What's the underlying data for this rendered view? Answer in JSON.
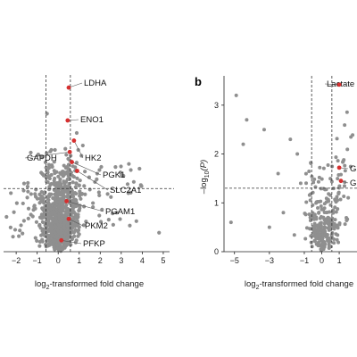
{
  "colors": {
    "point": "#8f8f8f",
    "highlight": "#d62f2f",
    "axis": "#222222",
    "threshold": "#333333"
  },
  "chart_data": [
    {
      "panel": "",
      "type": "scatter",
      "xlabel_prefix": "log",
      "xlabel_sub": "2",
      "xlabel_suffix": "-transformed fold change",
      "ylabel": "",
      "xlim": [
        -2.6,
        5.3
      ],
      "ylim": [
        0,
        14
      ],
      "xticks": [
        -2,
        -1,
        0,
        1,
        2,
        3,
        4,
        5
      ],
      "threshold_x": [
        -0.58,
        0.58
      ],
      "threshold_y": 5.0,
      "highlighted": [
        {
          "label": "LDHA",
          "x": 0.5,
          "y": 13.0
        },
        {
          "label": "ENO1",
          "x": 0.45,
          "y": 10.4
        },
        {
          "label": "HK2",
          "x": 0.75,
          "y": 8.8
        },
        {
          "label": "GAPDH",
          "x": 0.55,
          "y": 7.9
        },
        {
          "label": "PGK1",
          "x": 0.65,
          "y": 7.1
        },
        {
          "label": "SLC2A1",
          "x": 0.9,
          "y": 6.4
        },
        {
          "label": "PGAM1",
          "x": 0.4,
          "y": 4.0
        },
        {
          "label": "PKM2",
          "x": 0.5,
          "y": 2.6
        },
        {
          "label": "PFKP",
          "x": 0.15,
          "y": 0.9
        }
      ]
    },
    {
      "panel": "b",
      "type": "scatter",
      "xlabel_prefix": "log",
      "xlabel_sub": "2",
      "xlabel_suffix": "-transformed fold change",
      "ylabel_prefix": "–log",
      "ylabel_sub": "10",
      "ylabel_suffix": "(P)",
      "xlim": [
        -5.6,
        4.0
      ],
      "ylim": [
        0,
        3.6
      ],
      "xticks": [
        -5,
        -3,
        -1,
        0,
        1,
        3
      ],
      "xtick_labels": [
        "−5",
        "−3",
        "−1",
        "0",
        "1",
        "3"
      ],
      "yticks": [
        0,
        1,
        2,
        3
      ],
      "threshold_x": [
        -0.58,
        0.58
      ],
      "threshold_y": 1.3,
      "highlighted": [
        {
          "label": "Lactate",
          "x": 1.0,
          "y": 3.42
        },
        {
          "label": "G",
          "x": 1.0,
          "y": 1.72
        },
        {
          "label": "G",
          "x": 1.1,
          "y": 1.45
        }
      ]
    }
  ],
  "panel_a_xtick_labels": [
    "−2",
    "−1",
    "0",
    "1",
    "2",
    "3",
    "4",
    "5"
  ]
}
